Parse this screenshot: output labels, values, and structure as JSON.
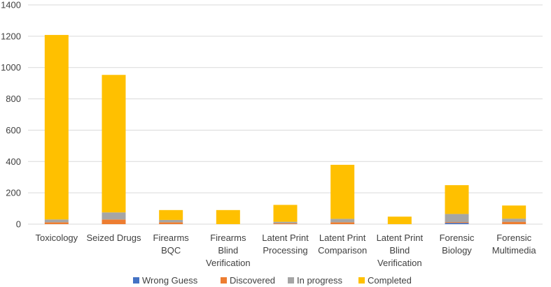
{
  "chart_data": {
    "type": "bar",
    "stacked": true,
    "categories": [
      "Toxicology",
      "Seized Drugs",
      "Firearms BQC",
      "Firearms Blind Verification",
      "Latent Print Processing",
      "Latent Print Comparison",
      "Latent Print Blind Verification",
      "Forensic Biology",
      "Forensic Multimedia"
    ],
    "category_lines": [
      [
        "Toxicology"
      ],
      [
        "Seized Drugs"
      ],
      [
        "Firearms",
        "BQC"
      ],
      [
        "Firearms",
        "Blind",
        "Verification"
      ],
      [
        "Latent Print",
        "Processing"
      ],
      [
        "Latent Print",
        "Comparison"
      ],
      [
        "Latent Print",
        "Blind",
        "Verification"
      ],
      [
        "Forensic",
        "Biology"
      ],
      [
        "Forensic",
        "Multimedia"
      ]
    ],
    "series": [
      {
        "name": "Wrong Guess",
        "color": "#4472C4",
        "values": [
          0,
          0,
          0,
          0,
          0,
          0,
          0,
          8,
          0
        ]
      },
      {
        "name": "Discovered",
        "color": "#ED7D31",
        "values": [
          12,
          30,
          12,
          0,
          5,
          12,
          0,
          5,
          15
        ]
      },
      {
        "name": "In progress",
        "color": "#A5A5A5",
        "values": [
          18,
          45,
          15,
          0,
          10,
          22,
          0,
          52,
          20
        ]
      },
      {
        "name": "Completed",
        "color": "#FFC000",
        "values": [
          1178,
          878,
          63,
          90,
          108,
          345,
          48,
          184,
          84
        ]
      }
    ],
    "ylim": [
      0,
      1400
    ],
    "yticks": [
      0,
      200,
      400,
      600,
      800,
      1000,
      1200,
      1400
    ],
    "grid": true,
    "legend_position": "bottom"
  }
}
